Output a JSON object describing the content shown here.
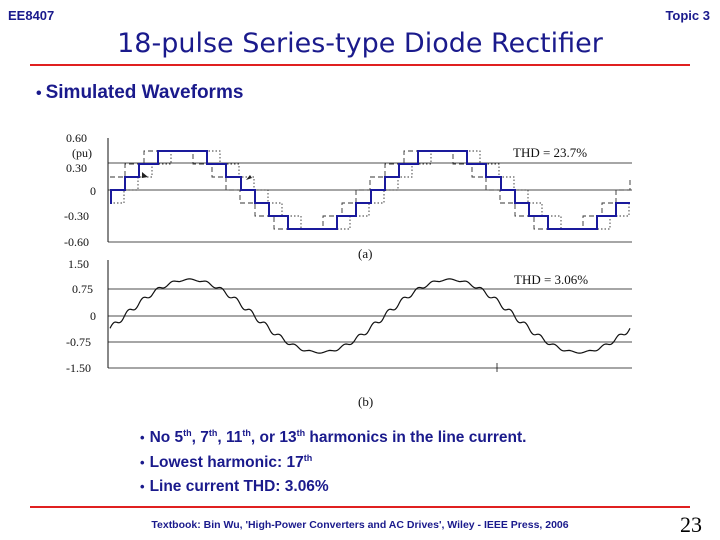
{
  "header": {
    "course": "EE8407",
    "topic": "Topic 3"
  },
  "title": "18-pulse Series-type Diode Rectifier",
  "section": "Simulated Waveforms",
  "chart_data": [
    {
      "type": "line",
      "panel_label": "(a)",
      "unit_label": "(pu)",
      "annotation": "THD = 23.7%",
      "yticks": [
        "0.60",
        "0.30",
        "0",
        "-0.30",
        "-0.60"
      ],
      "ylim": [
        -0.6,
        0.6
      ],
      "series": [
        {
          "color": "#1a1a9c",
          "style": "solid",
          "levels": [
            0,
            0.15,
            0.3,
            0.45
          ]
        },
        {
          "color": "#333333",
          "style": "dashed"
        },
        {
          "color": "#333333",
          "style": "dotted"
        }
      ]
    },
    {
      "type": "line",
      "panel_label": "(b)",
      "annotation": "THD = 3.06%",
      "yticks": [
        "1.50",
        "0.75",
        "0",
        "-0.75",
        "-1.50"
      ],
      "ylim": [
        -1.5,
        1.5
      ],
      "series": [
        {
          "color": "#111111",
          "style": "solid",
          "amplitude": 1.05,
          "cycles": 2
        }
      ]
    }
  ],
  "bullets": [
    {
      "text": "No 5th, 7th, 11th, or 13th  harmonics in the line current."
    },
    {
      "text": "Lowest harmonic:    17th"
    },
    {
      "text": "Line current THD:  3.06%"
    }
  ],
  "footer": "Textbook: Bin Wu, 'High-Power Converters and AC Drives', Wiley - IEEE Press, 2006",
  "page_number": "23"
}
